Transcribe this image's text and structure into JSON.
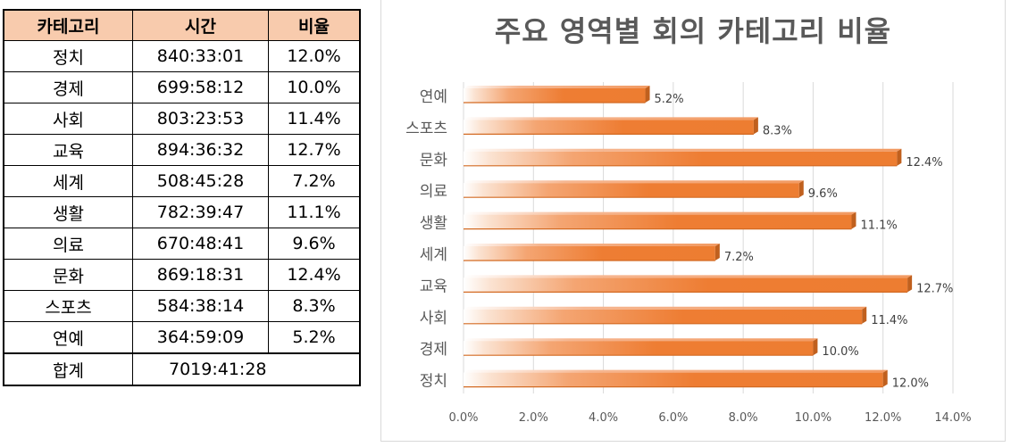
{
  "table": {
    "headers": [
      "카테고리",
      "시간",
      "비율"
    ],
    "rows": [
      [
        "정치",
        "840:33:01",
        "12.0%"
      ],
      [
        "경제",
        "699:58:12",
        "10.0%"
      ],
      [
        "사회",
        "803:23:53",
        "11.4%"
      ],
      [
        "교육",
        "894:36:32",
        "12.7%"
      ],
      [
        "세계",
        "508:45:28",
        "7.2%"
      ],
      [
        "생활",
        "782:39:47",
        "11.1%"
      ],
      [
        "의료",
        "670:48:41",
        "9.6%"
      ],
      [
        "문화",
        "869:18:31",
        "12.4%"
      ],
      [
        "스포츠",
        "584:38:14",
        "8.3%"
      ],
      [
        "연예",
        "364:59:09",
        "5.2%"
      ]
    ],
    "total": {
      "label": "합계",
      "time": "7019:41:28"
    }
  },
  "chart_data": {
    "type": "bar",
    "orientation": "horizontal",
    "title": "주요 영역별 회의 카테고리 비율",
    "categories": [
      "연예",
      "스포츠",
      "문화",
      "의료",
      "생활",
      "세계",
      "교육",
      "사회",
      "경제",
      "정치"
    ],
    "values": [
      5.2,
      8.3,
      12.4,
      9.6,
      11.1,
      7.2,
      12.7,
      11.4,
      10.0,
      12.0
    ],
    "data_labels": [
      "5.2%",
      "8.3%",
      "12.4%",
      "9.6%",
      "11.1%",
      "7.2%",
      "12.7%",
      "11.4%",
      "10.0%",
      "12.0%"
    ],
    "x_ticks": [
      "0.0%",
      "2.0%",
      "4.0%",
      "6.0%",
      "8.0%",
      "10.0%",
      "12.0%",
      "14.0%"
    ],
    "xlim": [
      0,
      14
    ],
    "grid": true,
    "bar_color": "#ed7d31"
  }
}
